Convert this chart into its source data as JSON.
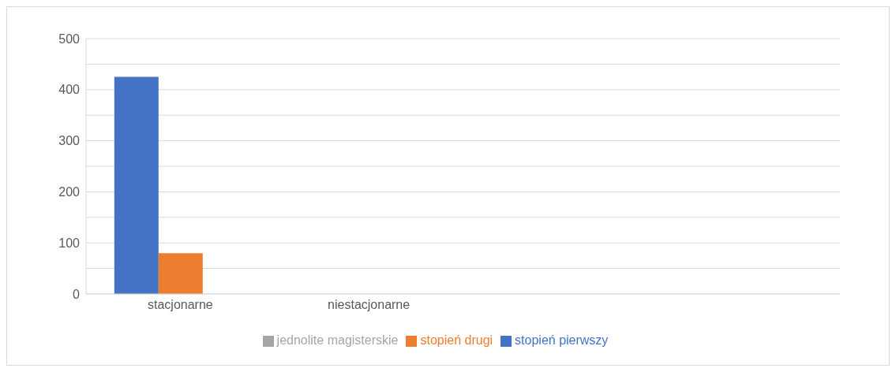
{
  "chart_data": {
    "type": "bar",
    "categories": [
      "stacjonarne",
      "niestacjonarne",
      null,
      null
    ],
    "series": [
      {
        "name": "stopień pierwszy",
        "color": "#4472c4",
        "values": [
          425,
          0,
          null,
          null
        ]
      },
      {
        "name": "stopień drugi",
        "color": "#ed7d31",
        "values": [
          80,
          0,
          null,
          null
        ]
      },
      {
        "name": "jednolite magisterskie",
        "color": "#a5a5a5",
        "values": [
          0,
          0,
          null,
          null
        ]
      }
    ],
    "ylim": [
      0,
      500
    ],
    "yticks": [
      0,
      {
        "value": 50,
        "label": null
      },
      100,
      {
        "value": 150,
        "label": null
      },
      200,
      {
        "value": 250,
        "label": null
      },
      300,
      {
        "value": 350,
        "label": null
      },
      400,
      {
        "value": 450,
        "label": null
      },
      500
    ],
    "grid": "y",
    "legend": "bottom"
  }
}
